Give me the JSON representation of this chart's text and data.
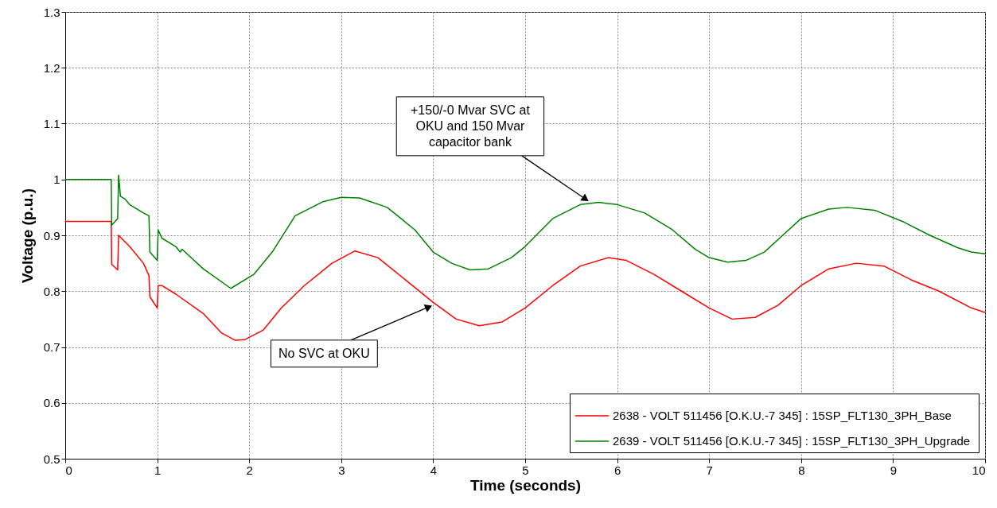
{
  "chart_data": {
    "type": "line",
    "xlabel": "Time (seconds)",
    "ylabel": "Voltage (p.u.)",
    "xlim": [
      0,
      10
    ],
    "xticks": [
      0,
      1,
      2,
      3,
      4,
      5,
      6,
      7,
      8,
      9,
      10
    ],
    "ylim": [
      0.5,
      1.3
    ],
    "yticks": [
      0.5,
      0.6,
      0.7,
      0.8,
      0.9,
      1,
      1.1,
      1.2,
      1.3
    ],
    "grid": true,
    "legend": "bottom right",
    "line_style": "solid",
    "series": [
      {
        "name": "2638 - VOLT  511456 [O.K.U.-7 345] : 15SP_FLT130_3PH_Base",
        "color": "#ff0000",
        "x": [
          0,
          0.5,
          0.505,
          0.57,
          0.58,
          0.7,
          0.85,
          0.91,
          0.92,
          1.0,
          1.01,
          1.05,
          1.2,
          1.5,
          1.7,
          1.85,
          1.95,
          2.15,
          2.35,
          2.6,
          2.9,
          3.15,
          3.4,
          3.7,
          4.0,
          4.25,
          4.5,
          4.75,
          5.0,
          5.3,
          5.6,
          5.9,
          6.1,
          6.4,
          6.7,
          7.0,
          7.25,
          7.5,
          7.75,
          8.0,
          8.3,
          8.6,
          8.9,
          9.2,
          9.5,
          9.85,
          10
        ],
        "values": [
          0.925,
          0.925,
          0.848,
          0.838,
          0.9,
          0.88,
          0.85,
          0.828,
          0.79,
          0.77,
          0.81,
          0.81,
          0.795,
          0.76,
          0.725,
          0.712,
          0.713,
          0.73,
          0.77,
          0.81,
          0.85,
          0.872,
          0.86,
          0.82,
          0.78,
          0.75,
          0.738,
          0.745,
          0.77,
          0.81,
          0.845,
          0.86,
          0.855,
          0.83,
          0.8,
          0.77,
          0.75,
          0.753,
          0.775,
          0.81,
          0.84,
          0.85,
          0.845,
          0.82,
          0.8,
          0.77,
          0.762
        ]
      },
      {
        "name": "2639 - VOLT  511456 [O.K.U.-7 345] : 15SP_FLT130_3PH_Upgrade",
        "color": "#008000",
        "x": [
          0,
          0.5,
          0.505,
          0.57,
          0.58,
          0.6,
          0.65,
          0.7,
          0.85,
          0.91,
          0.92,
          1.0,
          1.01,
          1.05,
          1.2,
          1.25,
          1.27,
          1.5,
          1.8,
          2.05,
          2.25,
          2.5,
          2.8,
          3.0,
          3.2,
          3.5,
          3.8,
          4.0,
          4.2,
          4.4,
          4.6,
          4.85,
          5.0,
          5.3,
          5.6,
          5.8,
          6.0,
          6.3,
          6.6,
          6.85,
          7.0,
          7.2,
          7.4,
          7.6,
          7.8,
          8.0,
          8.3,
          8.5,
          8.8,
          9.1,
          9.4,
          9.7,
          9.85,
          10
        ],
        "values": [
          1,
          1,
          0.918,
          0.93,
          1.008,
          0.97,
          0.965,
          0.955,
          0.94,
          0.935,
          0.87,
          0.855,
          0.91,
          0.895,
          0.88,
          0.87,
          0.875,
          0.84,
          0.805,
          0.83,
          0.87,
          0.935,
          0.96,
          0.968,
          0.967,
          0.95,
          0.91,
          0.87,
          0.85,
          0.838,
          0.84,
          0.86,
          0.88,
          0.93,
          0.955,
          0.959,
          0.955,
          0.94,
          0.91,
          0.875,
          0.86,
          0.852,
          0.855,
          0.87,
          0.9,
          0.93,
          0.947,
          0.95,
          0.945,
          0.925,
          0.9,
          0.878,
          0.87,
          0.867
        ]
      }
    ],
    "annotations": [
      {
        "text": "+150/-0 Mvar SVC at\nOKU and 150 Mvar\ncapacitor bank",
        "x": 5.7,
        "y": 0.96
      },
      {
        "text": "No SVC at OKU",
        "x": 4.0,
        "y": 0.775
      }
    ]
  }
}
